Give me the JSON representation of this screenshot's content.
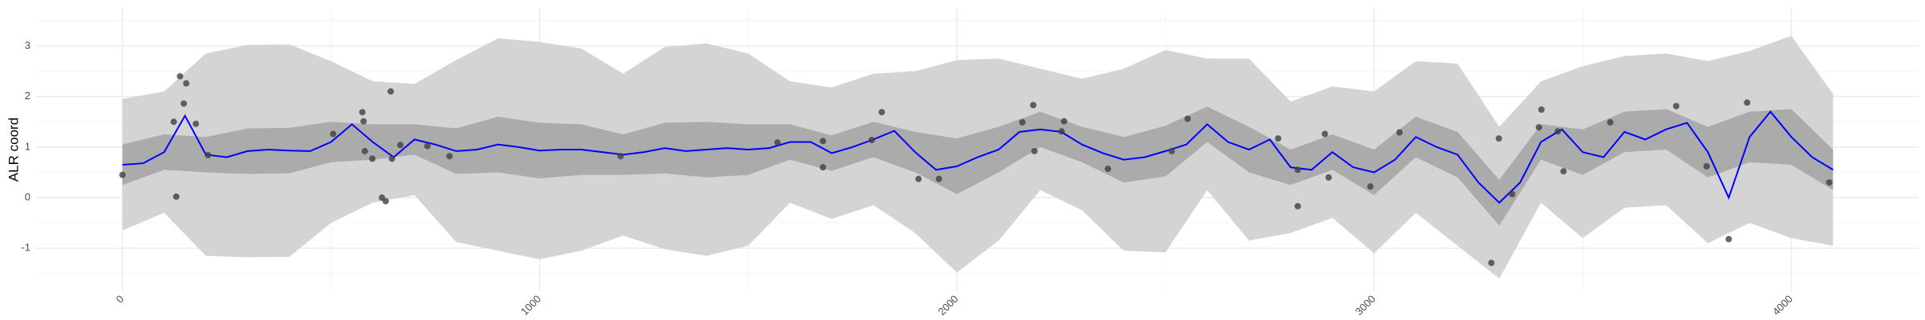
{
  "chart_data": {
    "type": "line",
    "y_label": "ALR coord",
    "xlim": [
      -205,
      4305
    ],
    "ylim": [
      -1.85,
      3.75
    ],
    "xticks": [
      0,
      1000,
      2000,
      3000,
      4000
    ],
    "yticks": [
      -1,
      0,
      1,
      2,
      3
    ],
    "x_minor_ticks": [
      500,
      1500,
      2500,
      3500
    ],
    "y_minor_ticks": [
      -1.5,
      -0.5,
      0.5,
      1.5,
      2.5,
      3.5
    ],
    "grid": true,
    "band_x": [
      0,
      100,
      200,
      300,
      400,
      500,
      600,
      700,
      800,
      900,
      1000,
      1100,
      1200,
      1300,
      1400,
      1500,
      1600,
      1700,
      1800,
      1900,
      2000,
      2100,
      2200,
      2300,
      2400,
      2500,
      2600,
      2700,
      2800,
      2900,
      3000,
      3100,
      3200,
      3300,
      3400,
      3500,
      3600,
      3700,
      3800,
      3900,
      4000,
      4100
    ],
    "bands": [
      {
        "color": "#d4d4d4",
        "lower": [
          -0.65,
          -0.3,
          -1.15,
          -1.18,
          -1.17,
          -0.5,
          -0.1,
          0.05,
          -0.88,
          -1.05,
          -1.22,
          -1.05,
          -0.75,
          -1.02,
          -1.15,
          -0.95,
          -0.1,
          -0.42,
          -0.15,
          -0.7,
          -1.48,
          -0.85,
          0.15,
          -0.25,
          -1.05,
          -1.08,
          0.15,
          -0.85,
          -0.7,
          -0.4,
          -1.1,
          -0.3,
          -0.95,
          -1.6,
          -0.1,
          -0.8,
          -0.2,
          -0.15,
          -0.9,
          -0.5,
          -0.8,
          -0.95
        ],
        "upper": [
          1.95,
          2.1,
          2.85,
          3.02,
          3.03,
          2.7,
          2.3,
          2.25,
          2.72,
          3.15,
          3.08,
          2.95,
          2.45,
          2.98,
          3.05,
          2.85,
          2.3,
          2.18,
          2.45,
          2.5,
          2.72,
          2.75,
          2.55,
          2.35,
          2.55,
          2.92,
          2.75,
          2.75,
          1.9,
          2.2,
          2.1,
          2.7,
          2.65,
          1.4,
          2.3,
          2.6,
          2.8,
          2.85,
          2.7,
          2.9,
          3.2,
          2.05
        ]
      },
      {
        "color": "#ababab",
        "lower": [
          0.25,
          0.55,
          0.5,
          0.47,
          0.48,
          0.7,
          0.75,
          0.85,
          0.47,
          0.5,
          0.38,
          0.45,
          0.45,
          0.48,
          0.4,
          0.45,
          0.75,
          0.53,
          0.8,
          0.5,
          0.07,
          0.5,
          1.0,
          0.7,
          0.3,
          0.42,
          1.1,
          0.5,
          0.25,
          0.55,
          0.05,
          0.8,
          0.4,
          -0.55,
          0.75,
          0.45,
          0.9,
          0.95,
          0.4,
          0.7,
          0.65,
          0.15
        ],
        "upper": [
          1.05,
          1.25,
          1.2,
          1.37,
          1.38,
          1.5,
          1.45,
          1.45,
          1.37,
          1.6,
          1.48,
          1.45,
          1.25,
          1.48,
          1.5,
          1.45,
          1.45,
          1.23,
          1.5,
          1.3,
          1.17,
          1.4,
          1.7,
          1.4,
          1.2,
          1.42,
          1.8,
          1.4,
          0.95,
          1.25,
          0.95,
          1.6,
          1.3,
          0.35,
          1.45,
          1.35,
          1.7,
          1.75,
          1.4,
          1.7,
          1.75,
          0.95
        ]
      }
    ],
    "line": {
      "color": "#0000ff",
      "x": [
        0,
        50,
        100,
        150,
        200,
        250,
        300,
        350,
        400,
        450,
        500,
        550,
        600,
        650,
        700,
        750,
        800,
        850,
        900,
        950,
        1000,
        1050,
        1100,
        1150,
        1200,
        1250,
        1300,
        1350,
        1400,
        1450,
        1500,
        1550,
        1600,
        1650,
        1700,
        1750,
        1800,
        1850,
        1900,
        1950,
        2000,
        2050,
        2100,
        2150,
        2200,
        2250,
        2300,
        2350,
        2400,
        2450,
        2500,
        2550,
        2600,
        2650,
        2700,
        2750,
        2800,
        2850,
        2900,
        2950,
        3000,
        3050,
        3100,
        3150,
        3200,
        3250,
        3300,
        3350,
        3400,
        3450,
        3500,
        3550,
        3600,
        3650,
        3700,
        3750,
        3800,
        3850,
        3900,
        3950,
        4000,
        4050,
        4100
      ],
      "values": [
        0.65,
        0.68,
        0.9,
        1.62,
        0.85,
        0.8,
        0.92,
        0.95,
        0.93,
        0.92,
        1.1,
        1.45,
        1.1,
        0.8,
        1.15,
        1.05,
        0.92,
        0.95,
        1.05,
        1.0,
        0.93,
        0.95,
        0.95,
        0.9,
        0.85,
        0.9,
        0.98,
        0.92,
        0.95,
        0.98,
        0.95,
        0.98,
        1.1,
        1.1,
        0.88,
        1.0,
        1.15,
        1.32,
        0.9,
        0.55,
        0.62,
        0.8,
        0.95,
        1.3,
        1.35,
        1.3,
        1.05,
        0.88,
        0.75,
        0.8,
        0.92,
        1.05,
        1.45,
        1.1,
        0.95,
        1.15,
        0.6,
        0.55,
        0.9,
        0.6,
        0.5,
        0.75,
        1.2,
        1.0,
        0.85,
        0.3,
        -0.1,
        0.3,
        1.1,
        1.35,
        0.9,
        0.8,
        1.3,
        1.15,
        1.35,
        1.48,
        0.9,
        0.0,
        1.2,
        1.7,
        1.2,
        0.8,
        0.55
      ]
    },
    "points": {
      "color": "#404040",
      "x": [
        0,
        123,
        138,
        129,
        147,
        153,
        176,
        205,
        505,
        575,
        578,
        581,
        599,
        622,
        631,
        643,
        646,
        666,
        731,
        784,
        1194,
        1570,
        1679,
        1679,
        1796,
        1820,
        1908,
        1957,
        2157,
        2183,
        2186,
        2251,
        2257,
        2362,
        2515,
        2553,
        2770,
        2817,
        2817,
        2882,
        2891,
        2991,
        3061,
        3281,
        3299,
        3331,
        3395,
        3401,
        3440,
        3454,
        3566,
        3724,
        3797,
        3850,
        3894,
        4091
      ],
      "y": [
        0.45,
        1.5,
        2.4,
        0.02,
        1.86,
        2.26,
        1.46,
        0.84,
        1.26,
        1.69,
        1.51,
        0.92,
        0.77,
        0,
        -0.07,
        2.1,
        0.77,
        1.04,
        1.02,
        0.82,
        0.82,
        1.09,
        1.12,
        0.6,
        1.14,
        1.69,
        0.37,
        0.37,
        1.49,
        1.83,
        0.92,
        1.31,
        1.51,
        0.57,
        0.92,
        1.56,
        1.17,
        0.55,
        -0.17,
        1.26,
        0.4,
        0.22,
        1.29,
        -1.29,
        1.17,
        0.07,
        1.39,
        1.74,
        1.31,
        0.52,
        1.49,
        1.81,
        0.62,
        -0.82,
        1.88,
        0.3
      ]
    }
  }
}
